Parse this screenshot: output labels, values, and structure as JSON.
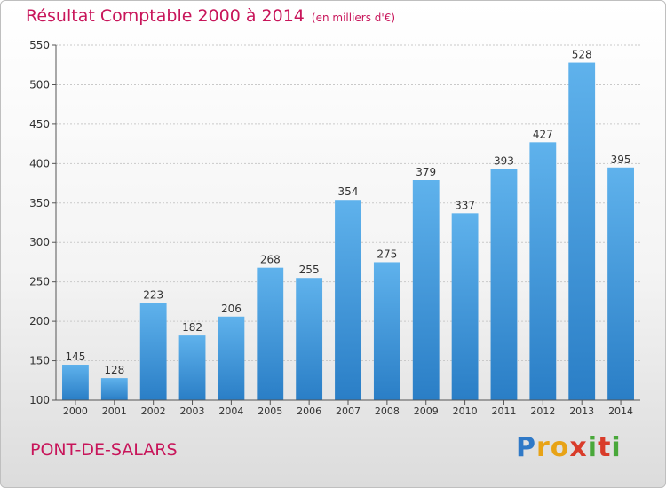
{
  "chart_data": {
    "type": "bar",
    "title": "Résultat Comptable 2000 à 2014",
    "subtitle": "(en milliers d'€)",
    "categories": [
      "2000",
      "2001",
      "2002",
      "2003",
      "2004",
      "2005",
      "2006",
      "2007",
      "2008",
      "2009",
      "2010",
      "2011",
      "2012",
      "2013",
      "2014"
    ],
    "values": [
      145,
      128,
      223,
      182,
      206,
      268,
      255,
      354,
      275,
      379,
      337,
      393,
      427,
      528,
      395
    ],
    "yticks": [
      100,
      150,
      200,
      250,
      300,
      350,
      400,
      450,
      500,
      550
    ],
    "ylim": [
      100,
      550
    ],
    "grid": true,
    "bar_color": "#3a8fd6"
  },
  "footer": {
    "town": "PONT-DE-SALARS"
  },
  "logo": {
    "letters": [
      "P",
      "r",
      "o",
      "x",
      "i",
      "t",
      "i"
    ],
    "colors": [
      "#2f79c7",
      "#e8a316",
      "#e8a316",
      "#d93c2a",
      "#49a83a",
      "#d93c2a",
      "#49a83a"
    ]
  }
}
